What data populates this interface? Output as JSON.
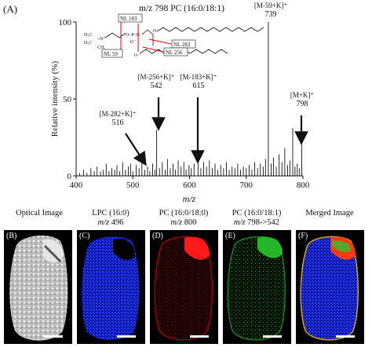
{
  "figure": {
    "panel_a_label": "(A)",
    "structure_title": "m/z 798 PC (16:0/18:1)",
    "structure_nl_labels": [
      "NL 183",
      "NL 282",
      "NL 59",
      "NL 256"
    ]
  },
  "chart_data": {
    "type": "bar",
    "xlabel": "m/z",
    "ylabel": "Relative intensity (%)",
    "xlim": [
      400,
      800
    ],
    "ylim": [
      0,
      100
    ],
    "xticks": [
      "400",
      "500",
      "600",
      "700",
      "800"
    ],
    "yticks": [
      "0",
      "50",
      "100"
    ],
    "peaks": [
      {
        "mz": 406,
        "intensity": 2
      },
      {
        "mz": 413,
        "intensity": 4
      },
      {
        "mz": 419,
        "intensity": 2
      },
      {
        "mz": 426,
        "intensity": 5
      },
      {
        "mz": 432,
        "intensity": 3
      },
      {
        "mz": 437,
        "intensity": 6
      },
      {
        "mz": 443,
        "intensity": 3
      },
      {
        "mz": 448,
        "intensity": 4
      },
      {
        "mz": 453,
        "intensity": 8
      },
      {
        "mz": 458,
        "intensity": 3
      },
      {
        "mz": 463,
        "intensity": 5
      },
      {
        "mz": 468,
        "intensity": 4
      },
      {
        "mz": 472,
        "intensity": 7
      },
      {
        "mz": 477,
        "intensity": 3
      },
      {
        "mz": 482,
        "intensity": 9
      },
      {
        "mz": 487,
        "intensity": 4
      },
      {
        "mz": 492,
        "intensity": 6
      },
      {
        "mz": 496,
        "intensity": 8
      },
      {
        "mz": 500,
        "intensity": 3
      },
      {
        "mz": 506,
        "intensity": 7
      },
      {
        "mz": 511,
        "intensity": 5
      },
      {
        "mz": 516,
        "intensity": 12
      },
      {
        "mz": 521,
        "intensity": 4
      },
      {
        "mz": 526,
        "intensity": 6
      },
      {
        "mz": 530,
        "intensity": 3
      },
      {
        "mz": 535,
        "intensity": 8
      },
      {
        "mz": 539,
        "intensity": 4
      },
      {
        "mz": 542,
        "intensity": 30
      },
      {
        "mz": 547,
        "intensity": 5
      },
      {
        "mz": 552,
        "intensity": 9
      },
      {
        "mz": 557,
        "intensity": 4
      },
      {
        "mz": 561,
        "intensity": 11
      },
      {
        "mz": 566,
        "intensity": 5
      },
      {
        "mz": 571,
        "intensity": 8
      },
      {
        "mz": 575,
        "intensity": 4
      },
      {
        "mz": 580,
        "intensity": 10
      },
      {
        "mz": 585,
        "intensity": 6
      },
      {
        "mz": 590,
        "intensity": 9
      },
      {
        "mz": 594,
        "intensity": 4
      },
      {
        "mz": 599,
        "intensity": 7
      },
      {
        "mz": 603,
        "intensity": 5
      },
      {
        "mz": 608,
        "intensity": 8
      },
      {
        "mz": 615,
        "intensity": 12
      },
      {
        "mz": 620,
        "intensity": 5
      },
      {
        "mz": 625,
        "intensity": 9
      },
      {
        "mz": 630,
        "intensity": 6
      },
      {
        "mz": 635,
        "intensity": 10
      },
      {
        "mz": 640,
        "intensity": 5
      },
      {
        "mz": 645,
        "intensity": 8
      },
      {
        "mz": 650,
        "intensity": 4
      },
      {
        "mz": 655,
        "intensity": 7
      },
      {
        "mz": 660,
        "intensity": 5
      },
      {
        "mz": 665,
        "intensity": 9
      },
      {
        "mz": 670,
        "intensity": 4
      },
      {
        "mz": 675,
        "intensity": 6
      },
      {
        "mz": 680,
        "intensity": 5
      },
      {
        "mz": 685,
        "intensity": 8
      },
      {
        "mz": 690,
        "intensity": 4
      },
      {
        "mz": 695,
        "intensity": 6
      },
      {
        "mz": 700,
        "intensity": 5
      },
      {
        "mz": 705,
        "intensity": 7
      },
      {
        "mz": 710,
        "intensity": 4
      },
      {
        "mz": 715,
        "intensity": 9
      },
      {
        "mz": 720,
        "intensity": 5
      },
      {
        "mz": 725,
        "intensity": 8
      },
      {
        "mz": 730,
        "intensity": 6
      },
      {
        "mz": 734,
        "intensity": 11
      },
      {
        "mz": 739,
        "intensity": 100
      },
      {
        "mz": 744,
        "intensity": 8
      },
      {
        "mz": 748,
        "intensity": 12
      },
      {
        "mz": 753,
        "intensity": 6
      },
      {
        "mz": 758,
        "intensity": 14
      },
      {
        "mz": 763,
        "intensity": 9
      },
      {
        "mz": 768,
        "intensity": 18
      },
      {
        "mz": 773,
        "intensity": 7
      },
      {
        "mz": 777,
        "intensity": 10
      },
      {
        "mz": 782,
        "intensity": 31
      },
      {
        "mz": 786,
        "intensity": 6
      },
      {
        "mz": 790,
        "intensity": 8
      },
      {
        "mz": 794,
        "intensity": 5
      },
      {
        "mz": 798,
        "intensity": 24
      }
    ],
    "annotations": [
      {
        "line1": "[M-282+K]⁺",
        "line2": "516",
        "mz": 516
      },
      {
        "line1": "[M-256+K]⁺",
        "line2": "542",
        "mz": 542
      },
      {
        "line1": "[M-183+K]⁺",
        "line2": "615",
        "mz": 615
      },
      {
        "line1": "[M-59+K]⁺",
        "line2": "739",
        "mz": 739
      },
      {
        "line1": "[M+K]⁺",
        "line2": "798",
        "mz": 798
      }
    ]
  },
  "images": [
    {
      "letter": "(B)",
      "title_line1": "Optical Image",
      "title_line2": "",
      "color": "#d8d8d8"
    },
    {
      "letter": "(C)",
      "title_line1": "LPC (16:0)",
      "title_line2_mz": "m/z",
      "title_line2_val": "496",
      "color": "#1e2cff"
    },
    {
      "letter": "(D)",
      "title_line1": "PC (16:0/18:0)",
      "title_line2_mz": "m/z",
      "title_line2_val": "800",
      "color": "#ff1a1a"
    },
    {
      "letter": "(E)",
      "title_line1": "PC (16:0/18:1)",
      "title_line2_mz": "m/z",
      "title_line2_val": "798->542",
      "color": "#1fd11f"
    },
    {
      "letter": "(F)",
      "title_line1": "Merged Image",
      "title_line2": "",
      "color": "#1e2cff"
    }
  ]
}
